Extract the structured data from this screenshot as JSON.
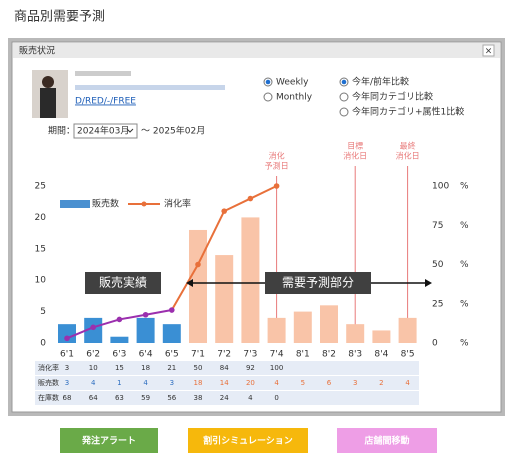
{
  "page_title": "商品別需要予測",
  "dialog": {
    "title": "販売状況",
    "close": "×",
    "product_link": "D/RED/-/FREE",
    "interval_options": [
      {
        "label": "Weekly",
        "checked": true
      },
      {
        "label": "Monthly",
        "checked": false
      }
    ],
    "compare_options": [
      {
        "label": "今年/前年比較",
        "checked": true
      },
      {
        "label": "今年同カテゴリ比較",
        "checked": false
      },
      {
        "label": "今年同カテゴリ+属性1比較",
        "checked": false
      }
    ],
    "period_label": "期間：",
    "period_start": "2024年03月",
    "period_end": "～ 2025年02月"
  },
  "chart_data": {
    "type": "bar",
    "categories": [
      "6'1",
      "6'2",
      "6'3",
      "6'4",
      "6'5",
      "7'1",
      "7'2",
      "7'3",
      "7'4",
      "8'1",
      "8'2",
      "8'3",
      "8'4",
      "8'5"
    ],
    "series": [
      {
        "name": "販売数",
        "color": "#4a90d0",
        "values": [
          3,
          4,
          1,
          4,
          3,
          18,
          14,
          20,
          4,
          5,
          6,
          3,
          2,
          4
        ],
        "bar_colors": [
          "#3a8fd4",
          "#3a8fd4",
          "#3a8fd4",
          "#3a8fd4",
          "#3a8fd4",
          "#f9c4a8",
          "#f9c4a8",
          "#f9c4a8",
          "#f9c4a8",
          "#f9c4a8",
          "#f9c4a8",
          "#f9c4a8",
          "#f9c4a8",
          "#f9c4a8"
        ]
      },
      {
        "name": "消化率",
        "type": "line",
        "axis": "y2",
        "color": "#e8703a",
        "values": [
          3,
          10,
          15,
          18,
          21,
          50,
          84,
          92,
          100,
          null,
          null,
          null,
          null,
          null
        ],
        "point_colors": [
          "#9b2fae",
          "#9b2fae",
          "#9b2fae",
          "#9b2fae",
          "#9b2fae",
          "#e8703a",
          "#e8703a",
          "#e8703a",
          "#e8703a",
          null,
          null,
          null,
          null,
          null
        ]
      }
    ],
    "ylim": [
      0,
      25
    ],
    "yticks": [
      0,
      5,
      10,
      15,
      20,
      25
    ],
    "y2lim": [
      0,
      100
    ],
    "y2ticks": [
      0,
      25,
      50,
      75,
      100
    ],
    "y2_unit": "%",
    "annotations": [
      {
        "lines": [
          "消化",
          "予測日"
        ],
        "category": "7'4"
      },
      {
        "lines": [
          "目標",
          "消化日"
        ],
        "category": "8'3"
      },
      {
        "lines": [
          "最終",
          "消化日"
        ],
        "category": "8'5"
      }
    ],
    "annotation_color": "#e87a7a",
    "range_labels": [
      "販売実績",
      "需要予測部分"
    ],
    "stock": {
      "name": "在庫数",
      "values": [
        68,
        64,
        63,
        59,
        56,
        38,
        24,
        4,
        0,
        null,
        null,
        null,
        null,
        null
      ]
    }
  },
  "buttons": [
    {
      "label": "発注アラート",
      "color": "#6aaa48"
    },
    {
      "label": "割引シミュレーション",
      "color": "#f6b80c"
    },
    {
      "label": "店舗間移動",
      "color": "#ee9ee6"
    }
  ]
}
